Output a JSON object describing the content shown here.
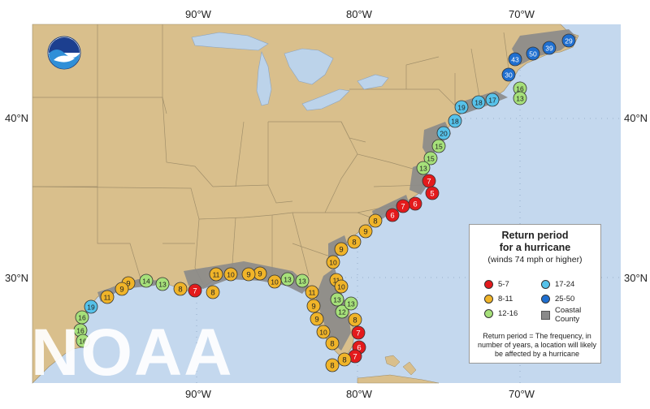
{
  "axes": {
    "top_lon": [
      "90°W",
      "80°W",
      "70°W"
    ],
    "bottom_lon": [
      "90°W",
      "80°W",
      "70°W"
    ],
    "left_lat": [
      "40°N",
      "30°N"
    ],
    "right_lat": [
      "40°N",
      "30°N"
    ]
  },
  "logo": {
    "text": "NOAA"
  },
  "watermark": "NOAA",
  "legend": {
    "title_line1": "Return period",
    "title_line2": "for a hurricane",
    "subtitle": "(winds 74 mph or higher)",
    "items": [
      {
        "label": "5-7",
        "color": "#e31a1c"
      },
      {
        "label": "8-11",
        "color": "#f0b429"
      },
      {
        "label": "12-16",
        "color": "#a6e07a"
      },
      {
        "label": "17-24",
        "color": "#56c2ea"
      },
      {
        "label": "25-50",
        "color": "#1f6fd0"
      },
      {
        "label": "Coastal County",
        "color": "#8a8a8a"
      }
    ],
    "note": "Return period = The frequency, in number of years, a location will likely be affected by a hurricane"
  },
  "colors": {
    "land": "#d9bf8c",
    "water": "#bcd3ea",
    "ocean": "#c4d8ee",
    "coastal_county": "#8a8a8a"
  },
  "return_periods": [
    {
      "value": "29",
      "class": "25-50"
    },
    {
      "value": "39",
      "class": "25-50"
    },
    {
      "value": "50",
      "class": "25-50"
    },
    {
      "value": "43",
      "class": "25-50"
    },
    {
      "value": "30",
      "class": "25-50"
    },
    {
      "value": "16",
      "class": "12-16"
    },
    {
      "value": "13",
      "class": "12-16"
    },
    {
      "value": "17",
      "class": "17-24"
    },
    {
      "value": "18",
      "class": "17-24"
    },
    {
      "value": "19",
      "class": "17-24"
    },
    {
      "value": "18",
      "class": "17-24"
    },
    {
      "value": "20",
      "class": "17-24"
    },
    {
      "value": "15",
      "class": "12-16"
    },
    {
      "value": "15",
      "class": "12-16"
    },
    {
      "value": "13",
      "class": "12-16"
    },
    {
      "value": "7",
      "class": "5-7"
    },
    {
      "value": "5",
      "class": "5-7"
    },
    {
      "value": "6",
      "class": "5-7"
    },
    {
      "value": "7",
      "class": "5-7"
    },
    {
      "value": "6",
      "class": "5-7"
    },
    {
      "value": "8",
      "class": "8-11"
    },
    {
      "value": "9",
      "class": "8-11"
    },
    {
      "value": "8",
      "class": "8-11"
    },
    {
      "value": "9",
      "class": "8-11"
    },
    {
      "value": "10",
      "class": "8-11"
    },
    {
      "value": "11",
      "class": "8-11"
    },
    {
      "value": "10",
      "class": "8-11"
    },
    {
      "value": "13",
      "class": "12-16"
    },
    {
      "value": "12",
      "class": "12-16"
    },
    {
      "value": "13",
      "class": "12-16"
    },
    {
      "value": "8",
      "class": "8-11"
    },
    {
      "value": "7",
      "class": "5-7"
    },
    {
      "value": "6",
      "class": "5-7"
    },
    {
      "value": "7",
      "class": "5-7"
    },
    {
      "value": "8",
      "class": "8-11"
    },
    {
      "value": "8",
      "class": "8-11"
    },
    {
      "value": "8",
      "class": "8-11"
    },
    {
      "value": "10",
      "class": "8-11"
    },
    {
      "value": "9",
      "class": "8-11"
    },
    {
      "value": "9",
      "class": "8-11"
    },
    {
      "value": "11",
      "class": "8-11"
    },
    {
      "value": "13",
      "class": "12-16"
    },
    {
      "value": "13",
      "class": "12-16"
    },
    {
      "value": "10",
      "class": "8-11"
    },
    {
      "value": "9",
      "class": "8-11"
    },
    {
      "value": "9",
      "class": "8-11"
    },
    {
      "value": "10",
      "class": "8-11"
    },
    {
      "value": "11",
      "class": "8-11"
    },
    {
      "value": "8",
      "class": "8-11"
    },
    {
      "value": "7",
      "class": "5-7"
    },
    {
      "value": "8",
      "class": "8-11"
    },
    {
      "value": "13",
      "class": "12-16"
    },
    {
      "value": "14",
      "class": "12-16"
    },
    {
      "value": "9",
      "class": "8-11"
    },
    {
      "value": "9",
      "class": "8-11"
    },
    {
      "value": "11",
      "class": "8-11"
    },
    {
      "value": "19",
      "class": "17-24"
    },
    {
      "value": "16",
      "class": "12-16"
    },
    {
      "value": "16",
      "class": "12-16"
    },
    {
      "value": "16",
      "class": "12-16"
    }
  ]
}
